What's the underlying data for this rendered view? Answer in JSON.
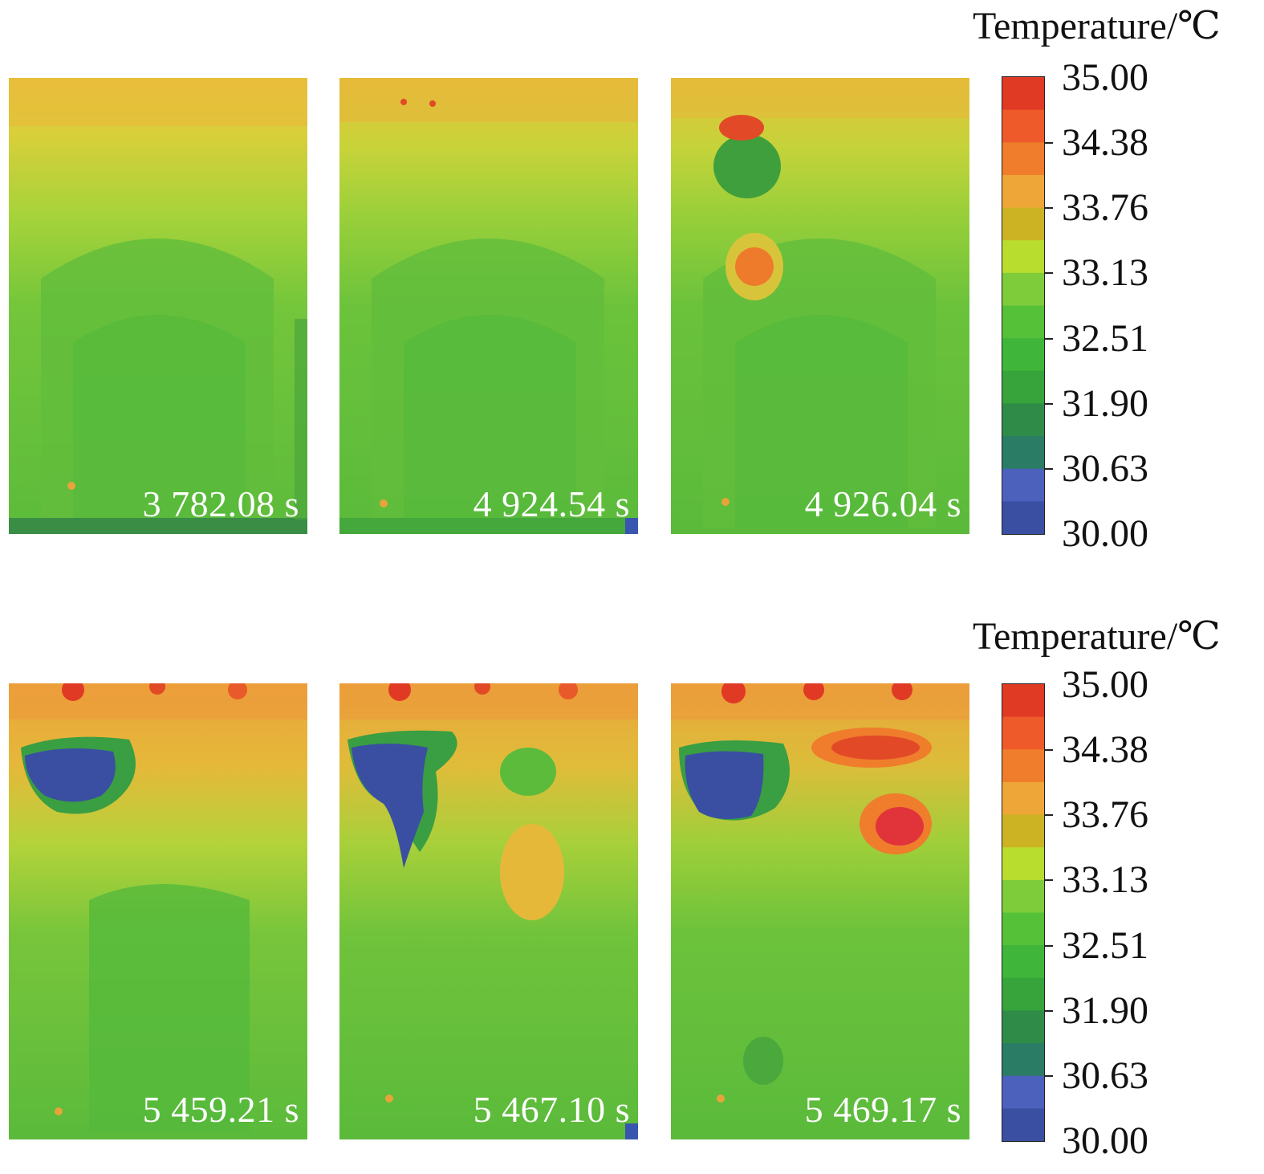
{
  "colorbars": [
    {
      "title": "Temperature/℃",
      "ticks": [
        "35.00",
        "34.38",
        "33.76",
        "33.13",
        "32.51",
        "31.90",
        "30.63",
        "30.00"
      ],
      "colors": [
        "#e03a25",
        "#ee5a2a",
        "#ef7d2c",
        "#eda637",
        "#cbb324",
        "#b8dd2f",
        "#7fcc3a",
        "#55c139",
        "#3fb53a",
        "#36a43a",
        "#2e8c48",
        "#2b7c64",
        "#4b61bb",
        "#3a4fa2"
      ]
    },
    {
      "title": "Temperature/℃",
      "ticks": [
        "35.00",
        "34.38",
        "33.76",
        "33.13",
        "32.51",
        "31.90",
        "30.63",
        "30.00"
      ],
      "colors": [
        "#e03a25",
        "#ee5a2a",
        "#ef7d2c",
        "#eda637",
        "#cbb324",
        "#b8dd2f",
        "#7fcc3a",
        "#55c139",
        "#3fb53a",
        "#36a43a",
        "#2e8c48",
        "#2b7c64",
        "#4b61bb",
        "#3a4fa2"
      ]
    }
  ],
  "panels": [
    {
      "time": "3 782.08 s"
    },
    {
      "time": "4 924.54 s"
    },
    {
      "time": "4 926.04 s"
    },
    {
      "time": "5 459.21 s"
    },
    {
      "time": "5 467.10 s"
    },
    {
      "time": "5 469.17 s"
    }
  ]
}
